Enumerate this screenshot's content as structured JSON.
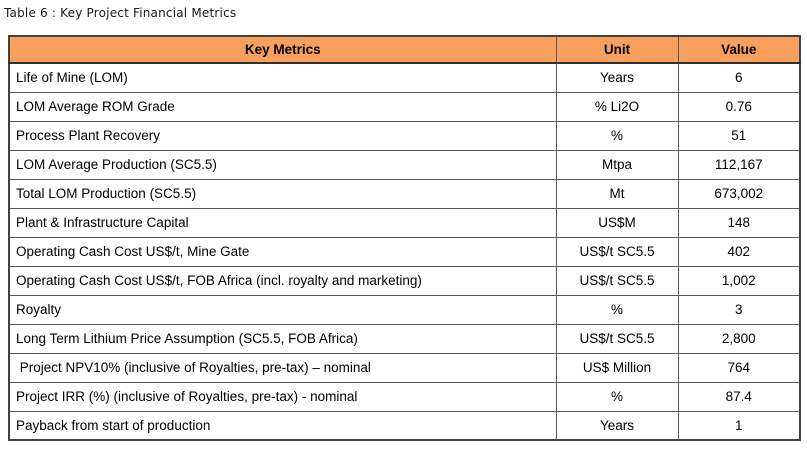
{
  "title": "Table 6 : Key Project Financial Metrics",
  "colors": {
    "header_background": "#F9A05E",
    "header_text": "#000000",
    "border": "#595959",
    "outer_border": "#404040",
    "body_text": "#000000",
    "page_background": "#ffffff"
  },
  "table": {
    "columns": [
      "Key Metrics",
      "Unit",
      "Value"
    ],
    "rows": [
      {
        "metric": "Life of Mine (LOM)",
        "unit": "Years",
        "value": "6"
      },
      {
        "metric": "LOM Average ROM Grade",
        "unit": "% Li2O",
        "value": "0.76"
      },
      {
        "metric": "Process Plant Recovery",
        "unit": "%",
        "value": "51"
      },
      {
        "metric": "LOM Average Production (SC5.5)",
        "unit": "Mtpa",
        "value": "112,167"
      },
      {
        "metric": "Total LOM Production (SC5.5)",
        "unit": "Mt",
        "value": "673,002"
      },
      {
        "metric": "Plant & Infrastructure Capital",
        "unit": "US$M",
        "value": "148"
      },
      {
        "metric": "Operating Cash Cost US$/t, Mine Gate",
        "unit": "US$/t SC5.5",
        "value": "402"
      },
      {
        "metric": "Operating Cash Cost US$/t, FOB Africa (incl. royalty and marketing)",
        "unit": "US$/t SC5.5",
        "value": "1,002"
      },
      {
        "metric": "Royalty",
        "unit": "%",
        "value": "3"
      },
      {
        "metric": "Long Term Lithium Price Assumption (SC5.5, FOB Africa)",
        "unit": "US$/t SC5.5",
        "value": "2,800"
      },
      {
        "metric": " Project NPV10% (inclusive of Royalties, pre-tax) – nominal",
        "unit": "US$ Million",
        "value": "764"
      },
      {
        "metric": "Project IRR (%) (inclusive of Royalties, pre-tax) - nominal",
        "unit": "%",
        "value": "87.4"
      },
      {
        "metric": "Payback from start of production",
        "unit": "Years",
        "value": "1"
      }
    ]
  }
}
